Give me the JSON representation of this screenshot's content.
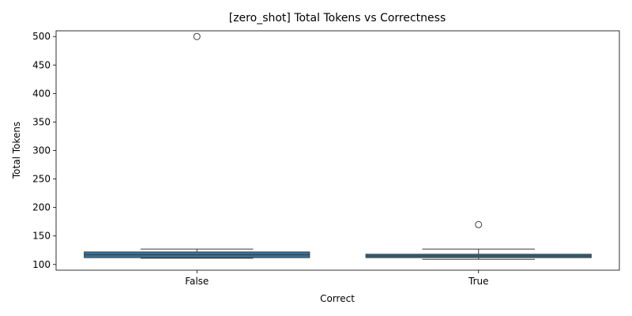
{
  "chart_data": {
    "type": "box",
    "title": "[zero_shot] Total Tokens vs Correctness",
    "xlabel": "Correct",
    "ylabel": "Total Tokens",
    "categories": [
      "False",
      "True"
    ],
    "ylim": [
      90,
      510
    ],
    "yticks": [
      100,
      150,
      200,
      250,
      300,
      350,
      400,
      450,
      500
    ],
    "grid": false,
    "legend": "none",
    "box_color": "#3274a1",
    "edge_color": "#3d3d3d",
    "boxes": [
      {
        "category": "False",
        "whisker_low": 111,
        "q1": 112,
        "median": 117,
        "q3": 122,
        "whisker_high": 127,
        "outliers": [
          500
        ]
      },
      {
        "category": "True",
        "whisker_low": 109,
        "q1": 112,
        "median": 115,
        "q3": 118,
        "whisker_high": 127,
        "outliers": [
          170
        ]
      }
    ]
  }
}
